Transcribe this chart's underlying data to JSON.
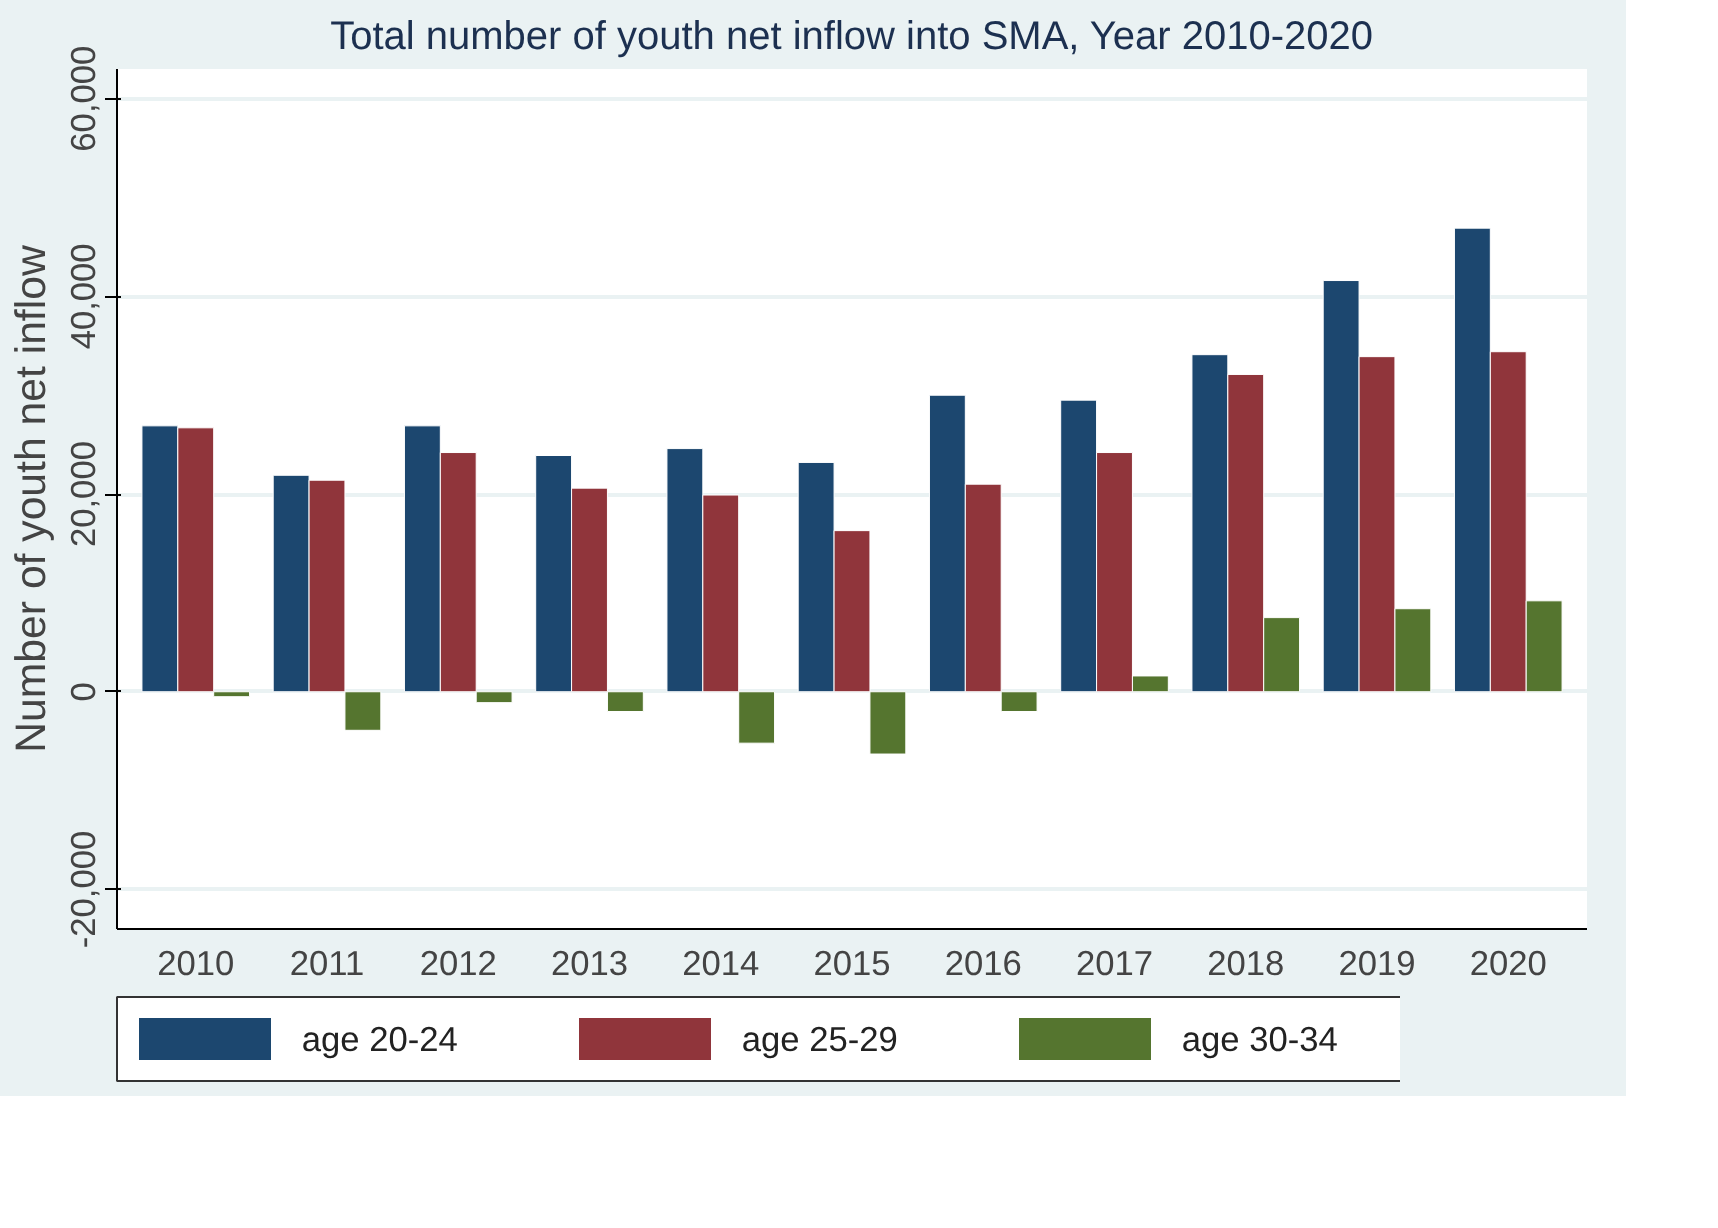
{
  "chart_data": {
    "type": "bar",
    "title": "Total number of youth net inflow into SMA, Year 2010-2020",
    "ylabel": "Number of youth net inflow",
    "categories": [
      "2010",
      "2011",
      "2012",
      "2013",
      "2014",
      "2015",
      "2016",
      "2017",
      "2018",
      "2019",
      "2020"
    ],
    "series": [
      {
        "name": "age 20-24",
        "color": "#1c476f",
        "values": [
          26900,
          21900,
          26900,
          23900,
          24600,
          23200,
          30000,
          29500,
          34100,
          41600,
          46900
        ]
      },
      {
        "name": "age 25-29",
        "color": "#90353b",
        "values": [
          26700,
          21400,
          24200,
          20600,
          19900,
          16300,
          21000,
          24200,
          32100,
          33900,
          34400
        ]
      },
      {
        "name": "age 30-34",
        "color": "#55752f",
        "values": [
          -500,
          -3900,
          -1100,
          -2000,
          -5200,
          -6300,
          -2000,
          1600,
          7500,
          8400,
          9200
        ]
      }
    ],
    "ylim": [
      -24000,
      63000
    ],
    "yticks": [
      {
        "value": -20000,
        "label": "-20,000"
      },
      0,
      {
        "value": 20000,
        "label": "20,000"
      },
      {
        "value": 40000,
        "label": "40,000"
      },
      {
        "value": 60000,
        "label": "60,000"
      }
    ],
    "grid": "y",
    "legend": "bottom"
  }
}
